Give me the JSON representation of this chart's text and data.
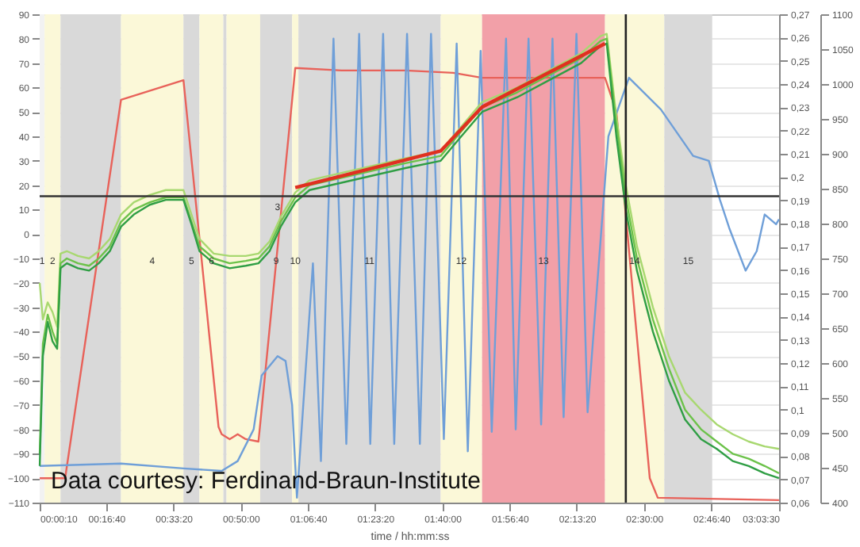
{
  "chart_data": {
    "type": "line",
    "xlabel": "time / hh:mm:ss",
    "xlim": [
      0.00278,
      3.05833
    ],
    "xticks": [
      {
        "value": 0.00278,
        "label": "00:00:10"
      },
      {
        "value": 0.27778,
        "label": "00:16:40"
      },
      {
        "value": 0.55556,
        "label": "00:33:20"
      },
      {
        "value": 0.83333,
        "label": "00:50:00"
      },
      {
        "value": 1.11111,
        "label": "01:06:40"
      },
      {
        "value": 1.38889,
        "label": "01:23:20"
      },
      {
        "value": 1.66667,
        "label": "01:40:00"
      },
      {
        "value": 1.94444,
        "label": "01:56:40"
      },
      {
        "value": 2.22222,
        "label": "02:13:20"
      },
      {
        "value": 2.5,
        "label": "02:30:00"
      },
      {
        "value": 2.77778,
        "label": "02:46:40"
      },
      {
        "value": 3.05833,
        "label": "03:03:30"
      }
    ],
    "ylim": [
      -110,
      90
    ],
    "yticks": [
      -110,
      -100,
      -90,
      -80,
      -70,
      -60,
      -50,
      -40,
      -30,
      -20,
      -10,
      0,
      10,
      20,
      30,
      40,
      50,
      60,
      70,
      80,
      90
    ],
    "y2lim": [
      0.06,
      0.27
    ],
    "y2ticks": [
      {
        "value": 0.06,
        "label": "0,06"
      },
      {
        "value": 0.07,
        "label": "0,07"
      },
      {
        "value": 0.08,
        "label": "0,08"
      },
      {
        "value": 0.09,
        "label": "0,09"
      },
      {
        "value": 0.1,
        "label": "0,1"
      },
      {
        "value": 0.11,
        "label": "0,11"
      },
      {
        "value": 0.12,
        "label": "0,12"
      },
      {
        "value": 0.13,
        "label": "0,13"
      },
      {
        "value": 0.14,
        "label": "0,14"
      },
      {
        "value": 0.15,
        "label": "0,15"
      },
      {
        "value": 0.16,
        "label": "0,16"
      },
      {
        "value": 0.17,
        "label": "0,17"
      },
      {
        "value": 0.18,
        "label": "0,18"
      },
      {
        "value": 0.19,
        "label": "0,19"
      },
      {
        "value": 0.2,
        "label": "0,2"
      },
      {
        "value": 0.21,
        "label": "0,21"
      },
      {
        "value": 0.22,
        "label": "0,22"
      },
      {
        "value": 0.23,
        "label": "0,23"
      },
      {
        "value": 0.24,
        "label": "0,24"
      },
      {
        "value": 0.25,
        "label": "0,25"
      },
      {
        "value": 0.26,
        "label": "0,26"
      },
      {
        "value": 0.27,
        "label": "0,27"
      }
    ],
    "y3lim": [
      400,
      1100
    ],
    "y3ticks": [
      400,
      450,
      500,
      550,
      600,
      650,
      700,
      750,
      800,
      850,
      900,
      950,
      1000,
      1050,
      1100
    ],
    "grid": "y",
    "line_style": "solid",
    "x": [
      0.003,
      0.016,
      0.036,
      0.056,
      0.075,
      0.089,
      0.115,
      0.161,
      0.207,
      0.247,
      0.293,
      0.339,
      0.392,
      0.458,
      0.524,
      0.597,
      0.63,
      0.663,
      0.722,
      0.788,
      0.854,
      0.907,
      0.953,
      0.999,
      1.059,
      1.118,
      1.25,
      1.382,
      1.514,
      1.66,
      1.745,
      1.831,
      1.976,
      2.108,
      2.24,
      2.32,
      2.346,
      2.386,
      2.425,
      2.471,
      2.537,
      2.603,
      2.67,
      2.736,
      2.801,
      2.867,
      2.933,
      2.999,
      3.058
    ],
    "series": [
      {
        "color": "#e8625a",
        "x": [
          0.003,
          0.108,
          0.339,
          0.597,
          0.742,
          0.755,
          0.788,
          0.821,
          0.854,
          0.907,
          1.059,
          1.25,
          1.514,
          1.712,
          1.831,
          2.339,
          2.386,
          2.524,
          2.557,
          3.058
        ],
        "values": [
          -100,
          -100,
          55,
          63,
          -79,
          -82,
          -84,
          -82,
          -84,
          -85,
          68,
          67,
          67,
          66,
          64,
          64,
          50,
          -100,
          -108,
          -109
        ]
      },
      {
        "color": "#6f9fd8",
        "x": [
          0.003,
          0.339,
          0.597,
          0.755,
          0.821,
          0.887,
          0.92,
          0.986,
          1.019,
          1.046,
          1.066,
          1.132,
          1.165,
          1.217,
          1.27,
          1.323,
          1.369,
          1.422,
          1.468,
          1.521,
          1.574,
          1.62,
          1.673,
          1.726,
          1.772,
          1.825,
          1.871,
          1.93,
          1.97,
          2.023,
          2.075,
          2.122,
          2.168,
          2.221,
          2.267,
          2.353,
          2.438,
          2.57,
          2.703,
          2.768,
          2.814,
          2.854,
          2.92,
          2.966,
          2.999,
          3.046,
          3.058
        ],
        "values": [
          -95,
          -94,
          -96,
          -97,
          -93,
          -80,
          -58,
          -50,
          -52,
          -70,
          -108,
          -12,
          -93,
          80,
          -86,
          82,
          -86,
          82,
          -86,
          82,
          -86,
          82,
          -84,
          78,
          -89,
          75,
          -81,
          80,
          -80,
          80,
          -78,
          80,
          -75,
          82,
          -73,
          40,
          64,
          51,
          32,
          30,
          14,
          2,
          -15,
          -7,
          8,
          4,
          6
        ]
      },
      {
        "color": "#a8d870",
        "values": [
          -20,
          -35,
          -28,
          -32,
          -38,
          -8,
          -7,
          -9,
          -10,
          -7,
          -2,
          8,
          13,
          16,
          18,
          18,
          8,
          -2,
          -8,
          -9,
          -9,
          -8,
          -3,
          7,
          17,
          22,
          25,
          28,
          31,
          34,
          44,
          54,
          60,
          67,
          74,
          81,
          82,
          48,
          20,
          -5,
          -30,
          -50,
          -65,
          -72,
          -78,
          -82,
          -85,
          -87,
          -88
        ]
      },
      {
        "color": "#6cc24a",
        "values": [
          -90,
          -45,
          -33,
          -40,
          -45,
          -12,
          -10,
          -12,
          -13,
          -10,
          -5,
          5,
          10,
          13,
          15,
          15,
          5,
          -5,
          -10,
          -12,
          -11,
          -10,
          -5,
          5,
          15,
          20,
          23,
          26,
          29,
          32,
          42,
          52,
          58,
          65,
          72,
          79,
          80,
          45,
          15,
          -10,
          -35,
          -55,
          -72,
          -80,
          -85,
          -90,
          -92,
          -95,
          -98
        ]
      },
      {
        "color": "#2f9e44",
        "values": [
          -95,
          -50,
          -36,
          -44,
          -47,
          -14,
          -12,
          -14,
          -15,
          -12,
          -7,
          3,
          8,
          12,
          14,
          14,
          4,
          -7,
          -12,
          -14,
          -13,
          -12,
          -7,
          3,
          13,
          18,
          21,
          24,
          27,
          30,
          40,
          50,
          56,
          63,
          70,
          77,
          78,
          40,
          10,
          -15,
          -40,
          -60,
          -76,
          -84,
          -88,
          -93,
          -95,
          -98,
          -100
        ]
      },
      {
        "type": "line",
        "color": "#e03020",
        "x": [
          1.059,
          1.66,
          1.831,
          2.339
        ],
        "values": [
          19,
          34,
          52,
          78
        ]
      }
    ],
    "bands": [
      {
        "axis": "x",
        "from": 0.00278,
        "to": 0.023,
        "color": "#f2f2f2",
        "label": "1"
      },
      {
        "axis": "x",
        "from": 0.023,
        "to": 0.089,
        "color": "#fbf8d8",
        "label": "2"
      },
      {
        "axis": "x",
        "from": 0.089,
        "to": 0.339,
        "color": "#d9d9d9"
      },
      {
        "axis": "x",
        "from": 0.339,
        "to": 0.597,
        "color": "#fbf8d8",
        "label": "4"
      },
      {
        "axis": "x",
        "from": 0.597,
        "to": 0.663,
        "color": "#d9d9d9",
        "label": "5"
      },
      {
        "axis": "x",
        "from": 0.663,
        "to": 0.762,
        "color": "#fbf8d8",
        "label": "6"
      },
      {
        "axis": "x",
        "from": 0.762,
        "to": 0.775,
        "color": "#d9d9d9"
      },
      {
        "axis": "x",
        "from": 0.775,
        "to": 0.914,
        "color": "#fbf8d8"
      },
      {
        "axis": "x",
        "from": 0.914,
        "to": 1.046,
        "color": "#d9d9d9",
        "label": "9"
      },
      {
        "axis": "x",
        "from": 1.046,
        "to": 1.072,
        "color": "#fbf8d8",
        "label": "10"
      },
      {
        "axis": "x",
        "from": 1.072,
        "to": 1.66,
        "color": "#d9d9d9",
        "label": "11"
      },
      {
        "axis": "x",
        "from": 1.66,
        "to": 1.831,
        "color": "#fbf8d8",
        "label": "12"
      },
      {
        "axis": "x",
        "from": 1.831,
        "to": 2.339,
        "color": "#f2a0a8",
        "label": "13"
      },
      {
        "axis": "x",
        "from": 2.339,
        "to": 2.584,
        "color": "#fbf8d8",
        "label": "14"
      },
      {
        "axis": "x",
        "from": 2.584,
        "to": 2.782,
        "color": "#d9d9d9",
        "label": "15"
      }
    ],
    "ref_lines": [
      {
        "axis": "y",
        "value": 15.5,
        "color": "#333333"
      },
      {
        "axis": "x",
        "value": 2.425,
        "color": "#222222"
      }
    ],
    "annotations": [
      {
        "text": "3",
        "x": 0.986,
        "y": 11
      },
      "Data courtesy: Ferdinand-Braun-Institute"
    ]
  }
}
